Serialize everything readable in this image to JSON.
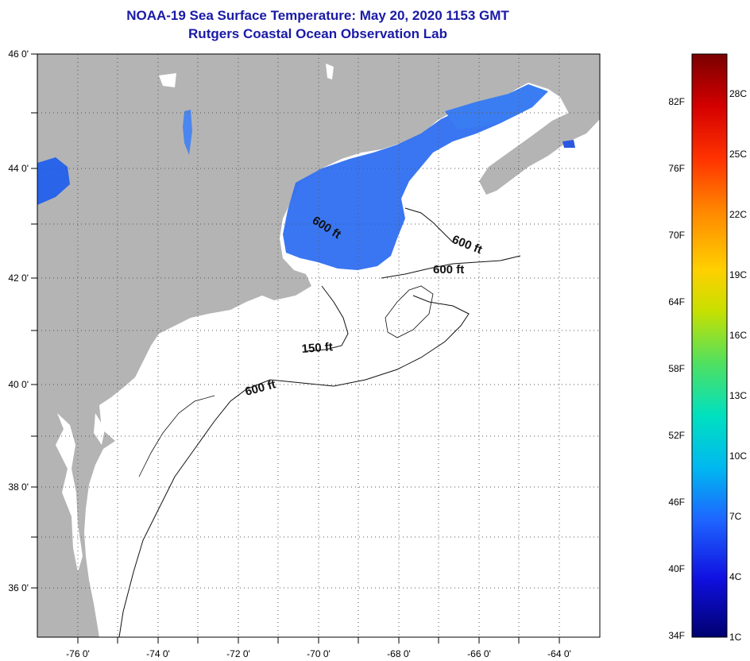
{
  "header": {
    "title": "NOAA-19 Sea Surface Temperature:  May 20, 2020 1153 GMT",
    "subtitle": "Rutgers Coastal Ocean Observation Lab"
  },
  "map": {
    "lon_ticks": [
      "-76 0'",
      "-74 0'",
      "-72 0'",
      "-70 0'",
      "-68 0'",
      "-66 0'",
      "-64 0'"
    ],
    "lat_ticks": [
      "46 0'",
      "44 0'",
      "42 0'",
      "40 0'",
      "38 0'",
      "36 0'"
    ],
    "lon_range": [
      -77,
      -63
    ],
    "lat_range": [
      35,
      46
    ],
    "grid": true,
    "contour_labels": [
      "600 ft",
      "600 ft",
      "600 ft",
      "150 ft",
      "600 ft"
    ],
    "colors": {
      "land": "#b4b4b4",
      "water": "#ffffff",
      "sst_dominant": "#2a6af0"
    }
  },
  "colorbar": {
    "fahrenheit_labels": [
      "82F",
      "76F",
      "70F",
      "64F",
      "58F",
      "52F",
      "46F",
      "40F",
      "34F"
    ],
    "celsius_labels": [
      "28C",
      "25C",
      "22C",
      "19C",
      "16C",
      "13C",
      "10C",
      "7C",
      "4C",
      "1C"
    ],
    "gradient_stops": [
      "#7a0000",
      "#d40000",
      "#ff3300",
      "#ff8800",
      "#ffd000",
      "#c8e000",
      "#50e060",
      "#00e0c0",
      "#00b8f0",
      "#1e64ff",
      "#1010e0",
      "#000070"
    ]
  }
}
